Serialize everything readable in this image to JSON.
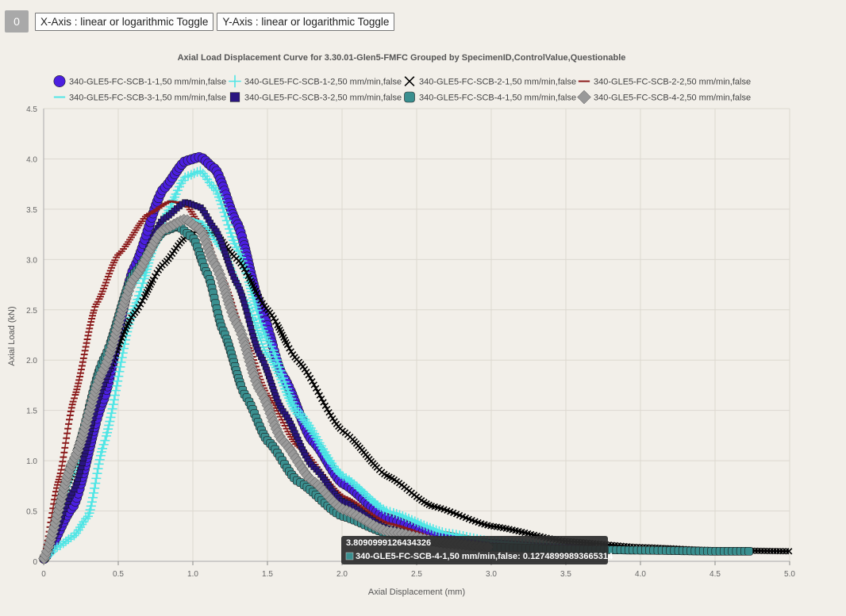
{
  "toolbar": {
    "badge": "0",
    "x_toggle_label": "X-Axis : linear or logarithmic Toggle",
    "y_toggle_label": "Y-Axis : linear or logarithmic Toggle"
  },
  "tooltip": {
    "x_value": "3.8090999126434326",
    "line": "340-GLE5-FC-SCB-4-1,50 mm/min,false: 0.12748999893665314",
    "color": "#3a8f8f"
  },
  "chart_data": {
    "type": "scatter",
    "title": "Axial Load Displacement Curve for 3.30.01-Glen5-FMFC Grouped by SpecimenID,ControlValue,Questionable",
    "xlabel": "Axial Displacement (mm)",
    "ylabel": "Axial Load (kN)",
    "xlim": [
      0,
      5
    ],
    "ylim": [
      0,
      4.5
    ],
    "xticks": [
      "0",
      "0.5",
      "1.0",
      "1.5",
      "2.0",
      "2.5",
      "3.0",
      "3.5",
      "4.0",
      "4.5",
      "5.0"
    ],
    "yticks": [
      "0",
      "0.5",
      "1.0",
      "1.5",
      "2.0",
      "2.5",
      "3.0",
      "3.5",
      "4.0",
      "4.5"
    ],
    "grid": true,
    "legend_position": "top",
    "series": [
      {
        "name": "340-GLE5-FC-SCB-1-1,50 mm/min,false",
        "marker": "circle",
        "color": "#4b1fe0",
        "x": [
          0,
          0.2,
          0.4,
          0.6,
          0.8,
          0.95,
          1.05,
          1.15,
          1.3,
          1.45,
          1.6,
          1.8,
          2.0,
          2.3,
          2.6,
          3.0,
          3.4,
          3.7
        ],
        "y": [
          0.02,
          0.55,
          1.6,
          2.9,
          3.7,
          3.98,
          4.02,
          3.9,
          3.35,
          2.55,
          1.85,
          1.2,
          0.78,
          0.43,
          0.27,
          0.17,
          0.13,
          0.12
        ]
      },
      {
        "name": "340-GLE5-FC-SCB-1-2,50 mm/min,false",
        "marker": "plus",
        "color": "#4fe6e6",
        "x": [
          0,
          0.1,
          0.2,
          0.3,
          0.4,
          0.6,
          0.8,
          0.95,
          1.05,
          1.15,
          1.3,
          1.5,
          1.7,
          2.0,
          2.3,
          2.7,
          3.0,
          3.5
        ],
        "y": [
          0.02,
          0.15,
          0.25,
          0.45,
          1.15,
          2.5,
          3.4,
          3.82,
          3.88,
          3.7,
          3.1,
          2.2,
          1.5,
          0.85,
          0.5,
          0.28,
          0.2,
          0.14
        ]
      },
      {
        "name": "340-GLE5-FC-SCB-2-1,50 mm/min,false",
        "marker": "x",
        "color": "#000000",
        "x": [
          0,
          0.2,
          0.4,
          0.6,
          0.8,
          0.95,
          1.05,
          1.15,
          1.3,
          1.5,
          1.7,
          2.0,
          2.3,
          2.6,
          3.0,
          3.5,
          4.0,
          4.5,
          5.0
        ],
        "y": [
          0.02,
          0.9,
          1.8,
          2.45,
          2.95,
          3.22,
          3.3,
          3.25,
          3.0,
          2.5,
          2.0,
          1.3,
          0.85,
          0.55,
          0.35,
          0.2,
          0.14,
          0.11,
          0.1
        ]
      },
      {
        "name": "340-GLE5-FC-SCB-2-2,50 mm/min,false",
        "marker": "dash",
        "color": "#8b1a1a",
        "x": [
          0,
          0.1,
          0.2,
          0.35,
          0.5,
          0.7,
          0.85,
          0.95,
          1.05,
          1.2,
          1.35,
          1.5,
          1.7,
          2.0,
          2.3,
          2.7,
          3.0
        ],
        "y": [
          0.02,
          0.8,
          1.6,
          2.55,
          3.05,
          3.45,
          3.58,
          3.55,
          3.35,
          2.8,
          2.2,
          1.65,
          1.15,
          0.65,
          0.38,
          0.2,
          0.14
        ]
      },
      {
        "name": "340-GLE5-FC-SCB-3-1,50 mm/min,false",
        "marker": "dash",
        "color": "#4fe6e6",
        "x": [
          0,
          0.2,
          0.4,
          0.6,
          0.8,
          0.95,
          1.05,
          1.2,
          1.35,
          1.5,
          1.7,
          2.0,
          2.3,
          2.7,
          3.0,
          3.5
        ],
        "y": [
          0.02,
          0.9,
          1.9,
          2.75,
          3.25,
          3.42,
          3.38,
          3.1,
          2.6,
          2.05,
          1.45,
          0.85,
          0.5,
          0.28,
          0.2,
          0.14
        ]
      },
      {
        "name": "340-GLE5-FC-SCB-3-2,50 mm/min,false",
        "marker": "square",
        "color": "#2a1580",
        "x": [
          0,
          0.2,
          0.4,
          0.6,
          0.8,
          0.95,
          1.05,
          1.15,
          1.3,
          1.45,
          1.6,
          1.8,
          2.0,
          2.3,
          2.6,
          3.0
        ],
        "y": [
          0.02,
          0.7,
          1.75,
          2.8,
          3.4,
          3.57,
          3.52,
          3.3,
          2.75,
          2.05,
          1.5,
          0.95,
          0.6,
          0.33,
          0.2,
          0.14
        ]
      },
      {
        "name": "340-GLE5-FC-SCB-4-1,50 mm/min,false",
        "marker": "roundsquare",
        "color": "#3a8f8f",
        "x": [
          0,
          0.2,
          0.4,
          0.6,
          0.8,
          0.9,
          1.0,
          1.1,
          1.2,
          1.35,
          1.5,
          1.7,
          2.0,
          2.3,
          2.7,
          3.0,
          3.5,
          4.0,
          4.5,
          4.75
        ],
        "y": [
          0.02,
          1.0,
          2.0,
          2.85,
          3.28,
          3.33,
          3.22,
          2.85,
          2.3,
          1.65,
          1.2,
          0.8,
          0.45,
          0.28,
          0.18,
          0.14,
          0.12,
          0.11,
          0.1,
          0.1
        ]
      },
      {
        "name": "340-GLE5-FC-SCB-4-2,50 mm/min,false",
        "marker": "diamond",
        "color": "#999999",
        "x": [
          0,
          0.2,
          0.4,
          0.6,
          0.8,
          0.95,
          1.05,
          1.15,
          1.3,
          1.45,
          1.6,
          1.8,
          2.0,
          2.3,
          2.7,
          3.0
        ],
        "y": [
          0.02,
          1.0,
          1.9,
          2.8,
          3.3,
          3.4,
          3.3,
          2.95,
          2.35,
          1.7,
          1.2,
          0.8,
          0.52,
          0.3,
          0.18,
          0.14
        ]
      }
    ]
  }
}
